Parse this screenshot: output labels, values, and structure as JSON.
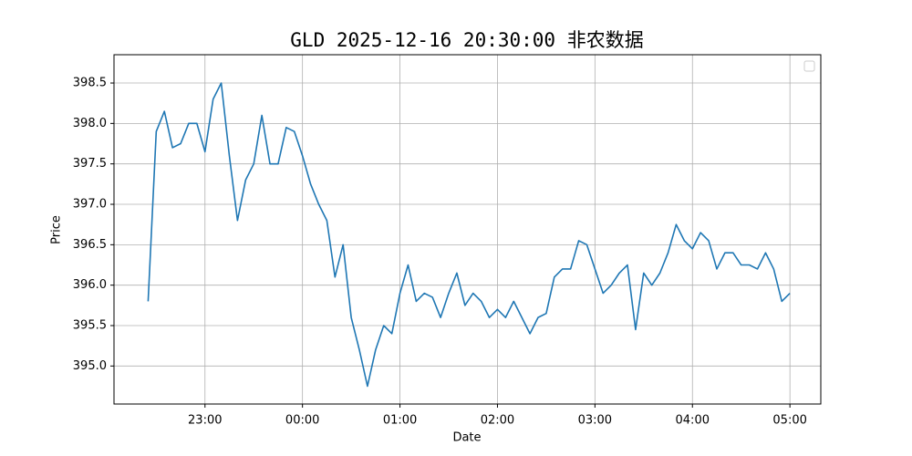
{
  "chart_data": {
    "type": "line",
    "title": "GLD 2025-12-16 20:30:00 非农数据",
    "xlabel": "Date",
    "ylabel": "Price",
    "x": [
      "22:25",
      "22:30",
      "22:35",
      "22:40",
      "22:45",
      "22:50",
      "22:55",
      "23:00",
      "23:05",
      "23:10",
      "23:15",
      "23:20",
      "23:25",
      "23:30",
      "23:35",
      "23:40",
      "23:45",
      "23:50",
      "23:55",
      "00:00",
      "00:05",
      "00:10",
      "00:15",
      "00:20",
      "00:25",
      "00:30",
      "00:35",
      "00:40",
      "00:45",
      "00:50",
      "00:55",
      "01:00",
      "01:05",
      "01:10",
      "01:15",
      "01:20",
      "01:25",
      "01:30",
      "01:35",
      "01:40",
      "01:45",
      "01:50",
      "01:55",
      "02:00",
      "02:05",
      "02:10",
      "02:15",
      "02:20",
      "02:25",
      "02:30",
      "02:35",
      "02:40",
      "02:45",
      "02:50",
      "02:55",
      "03:00",
      "03:05",
      "03:10",
      "03:15",
      "03:20",
      "03:25",
      "03:30",
      "03:35",
      "03:40",
      "03:45",
      "03:50",
      "03:55",
      "04:00",
      "04:05",
      "04:10",
      "04:15",
      "04:20",
      "04:25",
      "04:30",
      "04:35",
      "04:40",
      "04:45",
      "04:50",
      "04:55",
      "05:00"
    ],
    "values": [
      395.8,
      397.9,
      398.15,
      397.7,
      397.75,
      398.0,
      398.0,
      397.65,
      398.3,
      398.5,
      397.6,
      396.8,
      397.3,
      397.5,
      398.1,
      397.5,
      397.5,
      397.95,
      397.9,
      397.6,
      397.25,
      397.0,
      396.8,
      396.1,
      396.5,
      395.6,
      395.2,
      394.75,
      395.2,
      395.5,
      395.4,
      395.9,
      396.25,
      395.8,
      395.9,
      395.85,
      395.6,
      395.9,
      396.15,
      395.75,
      395.9,
      395.8,
      395.6,
      395.7,
      395.6,
      395.8,
      395.6,
      395.4,
      395.6,
      395.65,
      396.1,
      396.2,
      396.2,
      396.55,
      396.5,
      396.2,
      395.9,
      396.0,
      396.15,
      396.25,
      395.45,
      396.15,
      396.0,
      396.15,
      396.4,
      396.75,
      396.55,
      396.45,
      396.65,
      396.55,
      396.2,
      396.4,
      396.4,
      396.25,
      396.25,
      396.2,
      396.4,
      396.2,
      395.8,
      395.9
    ],
    "color": "#1f77b4",
    "xlim": [
      "22:04",
      "05:19"
    ],
    "xticks": [
      "23:00",
      "00:00",
      "01:00",
      "02:00",
      "03:00",
      "04:00",
      "05:00"
    ],
    "ylim": [
      394.53,
      398.85
    ],
    "yticks": [
      {
        "value": 395,
        "label": "395.0"
      },
      {
        "value": 395.5,
        "label": "395.5"
      },
      {
        "value": 396,
        "label": "396.0"
      },
      {
        "value": 396.5,
        "label": "396.5"
      },
      {
        "value": 397,
        "label": "397.0"
      },
      {
        "value": 397.5,
        "label": "397.5"
      },
      {
        "value": 398,
        "label": "398.0"
      },
      {
        "value": 398.5,
        "label": "398.5"
      }
    ],
    "grid": true
  }
}
